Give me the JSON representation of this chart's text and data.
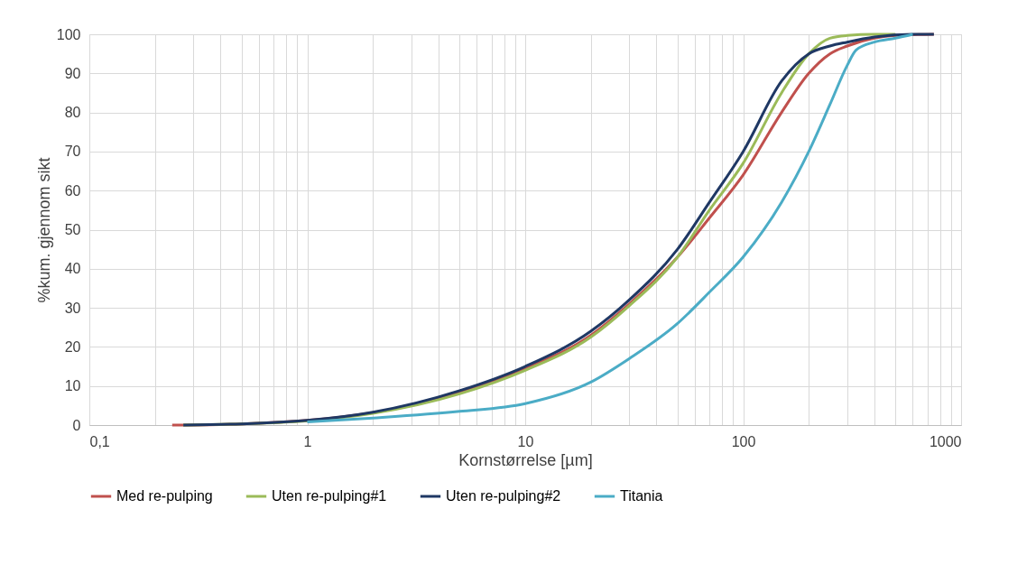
{
  "chart_data": {
    "type": "line",
    "xlabel": "Kornstørrelse [µm]",
    "ylabel": "%kum. gjennom sikt",
    "log": "x",
    "xlim": [
      0.1,
      1000
    ],
    "ylim": [
      0,
      100
    ],
    "xticks": [
      {
        "value": 0.1,
        "label": "0,1"
      },
      {
        "value": 0.2,
        "label": null
      },
      {
        "value": 0.3,
        "label": null
      },
      {
        "value": 0.4,
        "label": null
      },
      {
        "value": 0.5,
        "label": null
      },
      {
        "value": 0.6,
        "label": null
      },
      {
        "value": 0.7,
        "label": null
      },
      {
        "value": 0.8,
        "label": null
      },
      {
        "value": 0.9,
        "label": null
      },
      1,
      {
        "value": 2,
        "label": null
      },
      {
        "value": 3,
        "label": null
      },
      {
        "value": 4,
        "label": null
      },
      {
        "value": 5,
        "label": null
      },
      {
        "value": 6,
        "label": null
      },
      {
        "value": 7,
        "label": null
      },
      {
        "value": 8,
        "label": null
      },
      {
        "value": 9,
        "label": null
      },
      10,
      {
        "value": 20,
        "label": null
      },
      {
        "value": 30,
        "label": null
      },
      {
        "value": 40,
        "label": null
      },
      {
        "value": 50,
        "label": null
      },
      {
        "value": 60,
        "label": null
      },
      {
        "value": 70,
        "label": null
      },
      {
        "value": 80,
        "label": null
      },
      {
        "value": 90,
        "label": null
      },
      100,
      {
        "value": 200,
        "label": null
      },
      {
        "value": 300,
        "label": null
      },
      {
        "value": 400,
        "label": null
      },
      {
        "value": 500,
        "label": null
      },
      {
        "value": 600,
        "label": null
      },
      {
        "value": 700,
        "label": null
      },
      {
        "value": 800,
        "label": null
      },
      {
        "value": 900,
        "label": null
      },
      1000
    ],
    "yticks": [
      0,
      10,
      20,
      30,
      40,
      50,
      60,
      70,
      80,
      90,
      100
    ],
    "grid": true,
    "legend": "bottom",
    "marker": "none",
    "line_style": "solid",
    "series": [
      {
        "name": "Med re-pulping",
        "color": "#c0504d",
        "x": [
          0.24,
          0.3,
          0.5,
          1,
          2,
          3,
          5,
          10,
          20,
          30,
          50,
          70,
          100,
          150,
          200,
          250,
          300,
          400,
          500,
          750
        ],
        "values": [
          0,
          0,
          0.3,
          1.2,
          3.2,
          5,
          8.5,
          14.5,
          23,
          31,
          43,
          53,
          64,
          80,
          90,
          95,
          97,
          99,
          99.7,
          100
        ]
      },
      {
        "name": "Uten re-pulping#1",
        "color": "#9bbb59",
        "x": [
          0.27,
          0.5,
          1,
          2,
          5,
          10,
          20,
          30,
          50,
          70,
          100,
          150,
          200,
          250,
          300,
          400,
          500
        ],
        "values": [
          0,
          0.3,
          1.1,
          3,
          8,
          14,
          22.5,
          30.5,
          43,
          55,
          67,
          85,
          95,
          99,
          99.7,
          100,
          100
        ]
      },
      {
        "name": "Uten re-pulping#2",
        "color": "#1f3864",
        "x": [
          0.27,
          0.5,
          1,
          2,
          5,
          10,
          20,
          30,
          50,
          70,
          100,
          150,
          200,
          250,
          300,
          400,
          600,
          750
        ],
        "values": [
          0,
          0.3,
          1.2,
          3.3,
          8.8,
          15,
          24,
          32,
          45,
          57,
          70,
          88,
          95,
          97,
          98,
          99.3,
          100,
          100
        ]
      },
      {
        "name": "Titania",
        "color": "#4bacc6",
        "x": [
          1,
          2,
          5,
          10,
          20,
          30,
          50,
          70,
          100,
          150,
          200,
          250,
          300,
          330,
          400,
          500,
          600
        ],
        "values": [
          0.8,
          1.8,
          3.5,
          5.5,
          11,
          17,
          26,
          34,
          43,
          57,
          70,
          82,
          92,
          96,
          98,
          99,
          100
        ]
      }
    ]
  }
}
